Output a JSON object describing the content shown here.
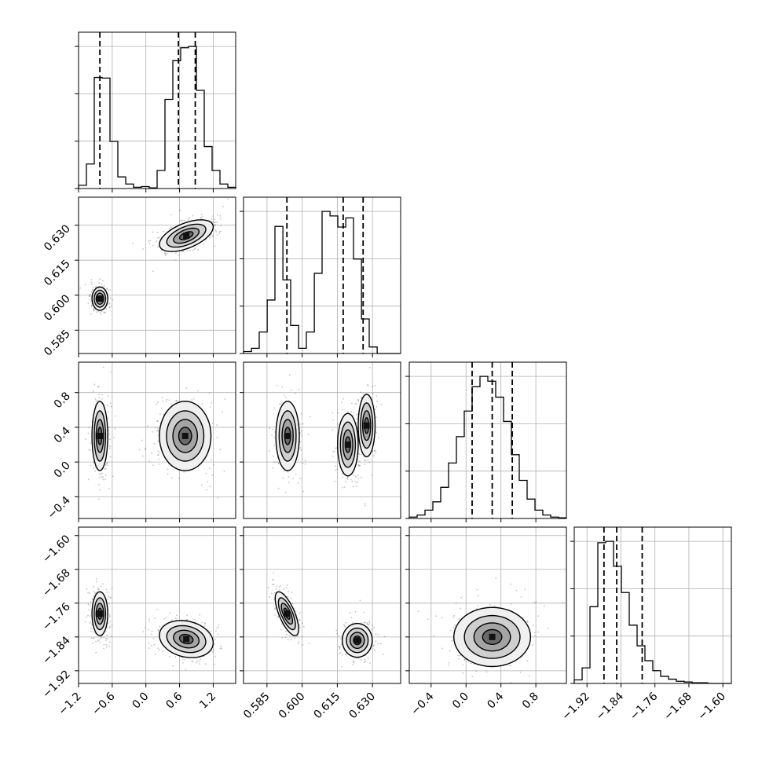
{
  "chart_data": {
    "type": "corner",
    "grid": true,
    "parameters": [
      {
        "range": [
          -1.2,
          1.6
        ],
        "ticks": [
          -1.2,
          -0.6,
          0.0,
          0.6,
          1.2
        ],
        "tick_labels": [
          "−1.2",
          "−0.6",
          "0.0",
          "0.6",
          "1.2"
        ],
        "quantiles": [
          -0.82,
          0.58,
          0.88
        ]
      },
      {
        "range": [
          0.575,
          0.642
        ],
        "ticks": [
          0.585,
          0.6,
          0.615,
          0.63
        ],
        "tick_labels": [
          "0.585",
          "0.600",
          "0.615",
          "0.630"
        ],
        "quantiles": [
          0.5935,
          0.6175,
          0.626
        ]
      },
      {
        "range": [
          -0.65,
          1.15
        ],
        "ticks": [
          -0.4,
          0.0,
          0.4,
          0.8
        ],
        "tick_labels": [
          "−0.4",
          "0.0",
          "0.4",
          "0.8"
        ],
        "quantiles": [
          0.07,
          0.3,
          0.53
        ]
      },
      {
        "range": [
          -1.95,
          -1.58
        ],
        "ticks": [
          -1.92,
          -1.84,
          -1.76,
          -1.68,
          -1.6
        ],
        "tick_labels": [
          "−1.92",
          "−1.84",
          "−1.76",
          "−1.68",
          "−1.60"
        ],
        "quantiles": [
          -1.88,
          -1.85,
          -1.79
        ]
      }
    ],
    "histograms": [
      {
        "edges": [
          -1.2,
          -1.06,
          -0.92,
          -0.78,
          -0.64,
          -0.5,
          -0.36,
          -0.22,
          -0.08,
          0.06,
          0.2,
          0.34,
          0.48,
          0.62,
          0.76,
          0.9,
          1.04,
          1.18,
          1.32,
          1.46,
          1.6
        ],
        "counts": [
          5,
          38,
          172,
          171,
          73,
          18,
          7,
          2,
          3,
          1,
          28,
          138,
          198,
          218,
          220,
          152,
          65,
          28,
          7,
          2
        ]
      },
      {
        "edges": [
          0.575,
          0.5784,
          0.5817,
          0.5851,
          0.5884,
          0.5918,
          0.5951,
          0.5985,
          0.6018,
          0.6052,
          0.6085,
          0.6119,
          0.6152,
          0.6186,
          0.6219,
          0.6253,
          0.6286,
          0.632,
          0.6353,
          0.6387,
          0.642
        ],
        "counts": [
          3,
          8,
          33,
          82,
          195,
          113,
          43,
          8,
          33,
          123,
          218,
          211,
          194,
          208,
          145,
          53,
          10,
          0,
          0,
          0
        ]
      },
      {
        "edges": [
          -0.65,
          -0.56,
          -0.47,
          -0.38,
          -0.29,
          -0.2,
          -0.11,
          -0.02,
          0.07,
          0.16,
          0.25,
          0.34,
          0.43,
          0.52,
          0.61,
          0.7,
          0.79,
          0.88,
          0.97,
          1.06,
          1.15
        ],
        "counts": [
          2,
          5,
          12,
          24,
          45,
          80,
          118,
          155,
          190,
          205,
          198,
          175,
          140,
          92,
          55,
          28,
          12,
          5,
          2,
          1
        ]
      },
      {
        "edges": [
          -1.95,
          -1.9315,
          -1.913,
          -1.8945,
          -1.876,
          -1.8575,
          -1.839,
          -1.8205,
          -1.802,
          -1.7835,
          -1.765,
          -1.7465,
          -1.728,
          -1.7095,
          -1.691,
          -1.6725,
          -1.654,
          -1.6355,
          -1.617,
          -1.5985,
          -1.58
        ],
        "counts": [
          5,
          22,
          108,
          198,
          200,
          165,
          128,
          82,
          53,
          32,
          18,
          10,
          6,
          3,
          2,
          1,
          1,
          0,
          0,
          0
        ]
      }
    ],
    "density_modes": [
      {
        "row": 1,
        "col": 0,
        "modes": [
          {
            "x": -0.82,
            "y": 0.5985,
            "sx": 0.07,
            "sy": 0.0025,
            "rho": 0.0
          },
          {
            "x": 0.72,
            "y": 0.6255,
            "sx": 0.24,
            "sy": 0.0034,
            "rho": 0.55
          }
        ]
      },
      {
        "row": 2,
        "col": 0,
        "modes": [
          {
            "x": -0.82,
            "y": 0.3,
            "sx": 0.07,
            "sy": 0.2,
            "rho": 0.0
          },
          {
            "x": 0.7,
            "y": 0.3,
            "sx": 0.23,
            "sy": 0.2,
            "rho": 0.0
          }
        ]
      },
      {
        "row": 2,
        "col": 1,
        "modes": [
          {
            "x": 0.5938,
            "y": 0.3,
            "sx": 0.0025,
            "sy": 0.2,
            "rho": 0.0
          },
          {
            "x": 0.6195,
            "y": 0.2,
            "sx": 0.0022,
            "sy": 0.18,
            "rho": 0.0
          },
          {
            "x": 0.6275,
            "y": 0.42,
            "sx": 0.0018,
            "sy": 0.18,
            "rho": 0.0
          }
        ]
      },
      {
        "row": 3,
        "col": 0,
        "modes": [
          {
            "x": -0.82,
            "y": -1.785,
            "sx": 0.07,
            "sy": 0.026,
            "rho": 0.0
          },
          {
            "x": 0.72,
            "y": -1.845,
            "sx": 0.24,
            "sy": 0.022,
            "rho": -0.2
          }
        ]
      },
      {
        "row": 3,
        "col": 1,
        "modes": [
          {
            "x": 0.5935,
            "y": -1.785,
            "sx": 0.0025,
            "sy": 0.026,
            "rho": -0.7
          },
          {
            "x": 0.6235,
            "y": -1.848,
            "sx": 0.0032,
            "sy": 0.02,
            "rho": 0.0
          }
        ]
      },
      {
        "row": 3,
        "col": 2,
        "modes": [
          {
            "x": 0.3,
            "y": -1.84,
            "sx": 0.22,
            "sy": 0.035,
            "rho": 0.0
          }
        ]
      }
    ]
  }
}
